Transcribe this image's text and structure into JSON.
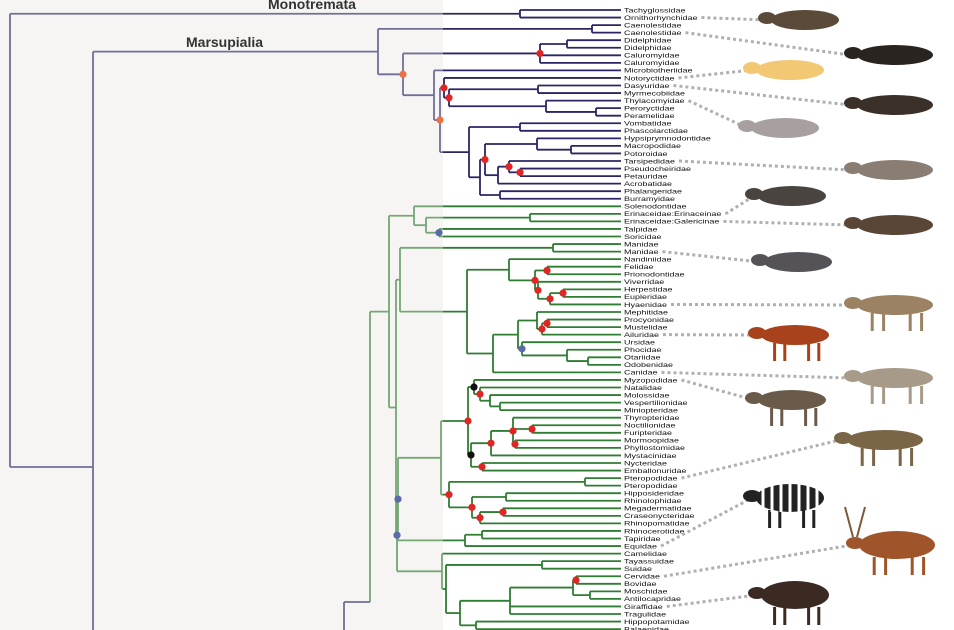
{
  "clades": {
    "monotremata": "Monotremata",
    "marsupialia": "Marsupialia"
  },
  "colors": {
    "marsupial_branch": "#2b2565",
    "placental_branch": "#2f7d32",
    "dot_red": "#e02525",
    "dot_orange": "#ec7246",
    "dot_blue": "#5b6aa8",
    "dot_black": "#111111",
    "connector": "#b0b0b0",
    "shaded_panel": "#f6f5f3"
  },
  "leaves": [
    "Tachyglossidae",
    "Ornithorhynchidae",
    "Caenolestidae",
    "Caenolestidae",
    "Didelphidae",
    "Didelphidae",
    "Caluromyidae",
    "Caluromyidae",
    "Microbiotheriidae",
    "Notoryctidae",
    "Dasyuridae",
    "Myrmecobiidae",
    "Thylacomyidae",
    "Peroryctidae",
    "Peramelidae",
    "Vombatidae",
    "Phascolarctidae",
    "Hypsiprymnodontidae",
    "Macropodidae",
    "Potoroidae",
    "Tarsipedidae",
    "Pseudocheiridae",
    "Petauridae",
    "Acrobatidae",
    "Phalangeridae",
    "Burramyidae",
    "Solenodontidae",
    "Erinaceidae:Erinaceinae",
    "Erinaceidae:Galericinae",
    "Talpidae",
    "Soricidae",
    "Manidae",
    "Manidae",
    "Nandiniidae",
    "Felidae",
    "Prionodontidae",
    "Viverridae",
    "Herpestidae",
    "Eupleridae",
    "Hyaenidae",
    "Mephitidae",
    "Procyonidae",
    "Mustelidae",
    "Ailuridae",
    "Ursidae",
    "Phocidae",
    "Otariidae",
    "Odobenidae",
    "Canidae",
    "Myzopodidae",
    "Natalidae",
    "Molossidae",
    "Vespertilionidae",
    "Miniopteridae",
    "Thyropteridae",
    "Noctilionidae",
    "Furipteridae",
    "Mormoopidae",
    "Phyllostomidae",
    "Mystacinidae",
    "Nycteridae",
    "Emballonuridae",
    "Pteropodidae",
    "Pteropodidae",
    "Hipposideridae",
    "Rhinolophidae",
    "Megadermatidae",
    "Craseonycteridae",
    "Rhinopomatidae",
    "Rhinocerotidae",
    "Tapiridae",
    "Equidae",
    "Camelidae",
    "Tayassuidae",
    "Suidae",
    "Cervidae",
    "Bovidae",
    "Moschidae",
    "Antilocapridae",
    "Giraffidae",
    "Tragulidae",
    "Hippopotamidae",
    "Balaenidae"
  ],
  "animals": [
    {
      "icon": "platypus-icon",
      "label_index": 1,
      "color": "#5a4a3a"
    },
    {
      "icon": "shrew-opossum-icon",
      "label_index": 3,
      "color": "#2a2420"
    },
    {
      "icon": "marsupial-mole-icon",
      "label_index": 9,
      "color": "#f2c872"
    },
    {
      "icon": "quoll-icon",
      "label_index": 10,
      "color": "#3a3028"
    },
    {
      "icon": "bilby-icon",
      "label_index": 12,
      "color": "#a8a0a0"
    },
    {
      "icon": "honey-possum-icon",
      "label_index": 20,
      "color": "#8a7e74"
    },
    {
      "icon": "hedgehog-icon",
      "label_index": 27,
      "color": "#4a4440"
    },
    {
      "icon": "moonrat-icon",
      "label_index": 28,
      "color": "#5a4636"
    },
    {
      "icon": "pangolin-icon",
      "label_index": 32,
      "color": "#555258"
    },
    {
      "icon": "hyena-icon",
      "label_index": 39,
      "color": "#9a8262"
    },
    {
      "icon": "red-panda-icon",
      "label_index": 43,
      "color": "#a8421c"
    },
    {
      "icon": "canid-icon",
      "label_index": 48,
      "color": "#a89a88"
    },
    {
      "icon": "bat-icon",
      "label_index": 49,
      "color": "#6a5a4a"
    },
    {
      "icon": "flying-fox-icon",
      "label_index": 62,
      "color": "#7a6646"
    },
    {
      "icon": "zebra-icon",
      "label_index": 71,
      "color": "#222222"
    },
    {
      "icon": "deer-icon",
      "label_index": 75,
      "color": "#a0542a"
    },
    {
      "icon": "okapi-icon",
      "label_index": 79,
      "color": "#3a2a22"
    }
  ]
}
